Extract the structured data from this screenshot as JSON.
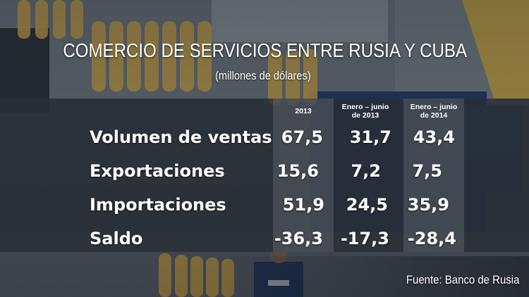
{
  "chart_data": {
    "type": "table",
    "title": "COMERCIO DE SERVICIOS ENTRE RUSIA Y CUBA",
    "subtitle": "(millones de dólares)",
    "columns": [
      {
        "line1": "2013",
        "line2": ""
      },
      {
        "line1": "Enero – junio",
        "line2": "de 2013"
      },
      {
        "line1": "Enero – junio",
        "line2": "de 2014"
      }
    ],
    "rows": [
      {
        "label": "Volumen de ventas",
        "values": [
          "67,5",
          "31,7",
          "43,4"
        ]
      },
      {
        "label": "Exportaciones",
        "values": [
          "15,6",
          "7,2",
          "7,5"
        ]
      },
      {
        "label": "Importaciones",
        "values": [
          "51,9",
          "24,5",
          "35,9"
        ]
      },
      {
        "label": "Saldo",
        "values": [
          "-36,3",
          "-17,3",
          "-28,4"
        ]
      }
    ],
    "source": "Fuente: Banco de Rusia"
  },
  "colors": {
    "text": "#ffffff",
    "panel": "#2e343c",
    "column_highlight": "#6e747c",
    "cylinders": "#c9a24a"
  }
}
